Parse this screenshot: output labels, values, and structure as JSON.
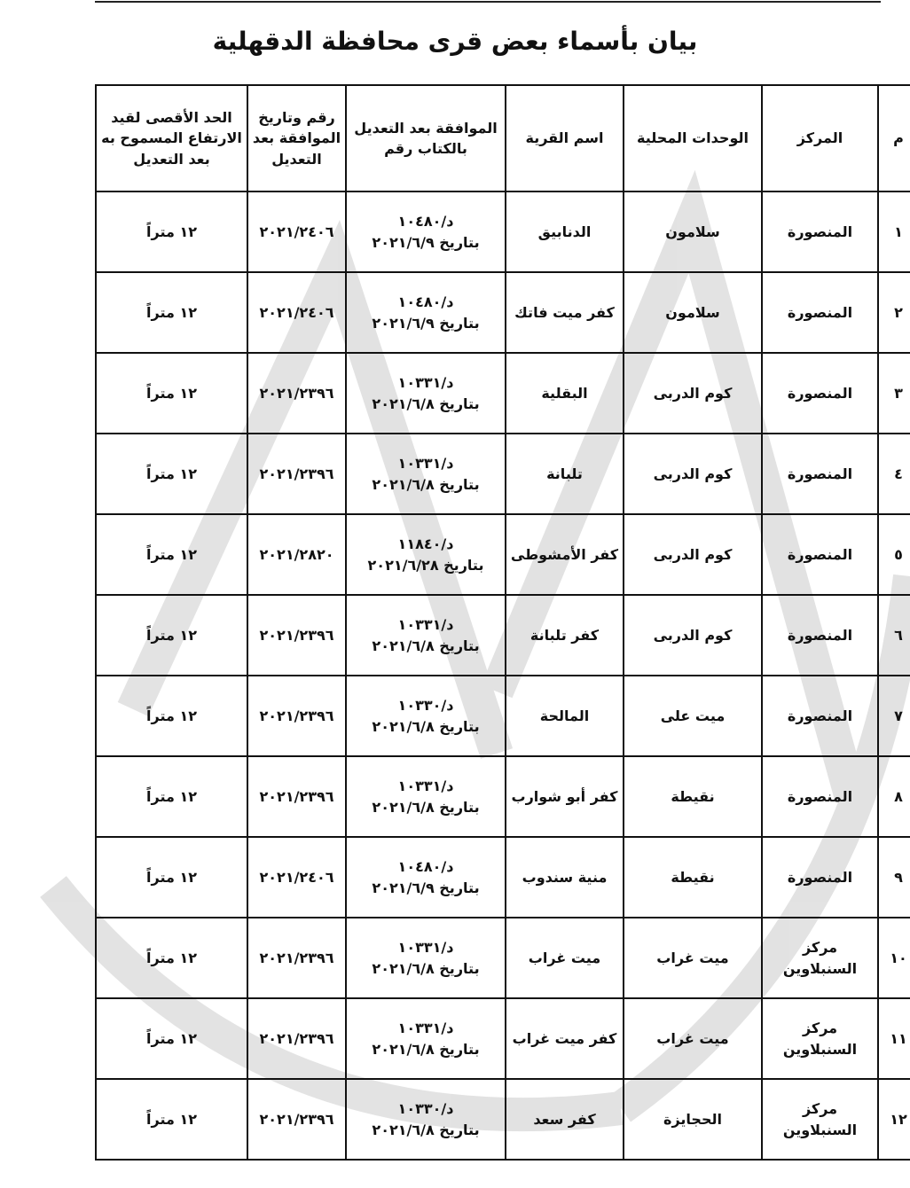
{
  "title": "بيان بأسماء بعض قرى محافظة الدقهلية",
  "headers": [
    "م",
    "المركز",
    "الوحدات المحلية",
    "اسم القرية",
    "الموافقة بعد التعديل بالكتاب رقم",
    "رقم وتاريخ الموافقة بعد التعديل",
    "الحد الأقصى لقيد الارتفاع المسموح به بعد التعديل"
  ],
  "rows": [
    {
      "n": "١",
      "markaz": "المنصورة",
      "unit": "سلامون",
      "village": "الدنابيق",
      "letter": "د/١٠٤٨٠",
      "date": "بتاريخ ٢٠٢١/٦/٩",
      "approval": "٢٠٢١/٢٤٠٦",
      "limit": "١٢ متراً"
    },
    {
      "n": "٢",
      "markaz": "المنصورة",
      "unit": "سلامون",
      "village": "كفر ميت فاتك",
      "letter": "د/١٠٤٨٠",
      "date": "بتاريخ ٢٠٢١/٦/٩",
      "approval": "٢٠٢١/٢٤٠٦",
      "limit": "١٢ متراً"
    },
    {
      "n": "٣",
      "markaz": "المنصورة",
      "unit": "كوم الدربى",
      "village": "البقلية",
      "letter": "د/١٠٣٣١",
      "date": "بتاريخ ٢٠٢١/٦/٨",
      "approval": "٢٠٢١/٢٣٩٦",
      "limit": "١٢ متراً"
    },
    {
      "n": "٤",
      "markaz": "المنصورة",
      "unit": "كوم الدربى",
      "village": "تلبانة",
      "letter": "د/١٠٣٣١",
      "date": "بتاريخ ٢٠٢١/٦/٨",
      "approval": "٢٠٢١/٢٣٩٦",
      "limit": "١٢ متراً"
    },
    {
      "n": "٥",
      "markaz": "المنصورة",
      "unit": "كوم الدربى",
      "village": "كفر الأمشوطى",
      "letter": "د/١١٨٤٠",
      "date": "بتاريخ ٢٠٢١/٦/٢٨",
      "approval": "٢٠٢١/٢٨٢٠",
      "limit": "١٢ متراً"
    },
    {
      "n": "٦",
      "markaz": "المنصورة",
      "unit": "كوم الدربى",
      "village": "كفر تلبانة",
      "letter": "د/١٠٣٣١",
      "date": "بتاريخ ٢٠٢١/٦/٨",
      "approval": "٢٠٢١/٢٣٩٦",
      "limit": "١٢ متراً"
    },
    {
      "n": "٧",
      "markaz": "المنصورة",
      "unit": "ميت على",
      "village": "المالحة",
      "letter": "د/١٠٣٣٠",
      "date": "بتاريخ ٢٠٢١/٦/٨",
      "approval": "٢٠٢١/٢٣٩٦",
      "limit": "١٢ متراً"
    },
    {
      "n": "٨",
      "markaz": "المنصورة",
      "unit": "نقيطة",
      "village": "كفر أبو شوارب",
      "letter": "د/١٠٣٣١",
      "date": "بتاريخ ٢٠٢١/٦/٨",
      "approval": "٢٠٢١/٢٣٩٦",
      "limit": "١٢ متراً"
    },
    {
      "n": "٩",
      "markaz": "المنصورة",
      "unit": "نقيطة",
      "village": "منية سندوب",
      "letter": "د/١٠٤٨٠",
      "date": "بتاريخ ٢٠٢١/٦/٩",
      "approval": "٢٠٢١/٢٤٠٦",
      "limit": "١٢ متراً"
    },
    {
      "n": "١٠",
      "markaz": "مركز السنبلاوين",
      "unit": "ميت غراب",
      "village": "ميت غراب",
      "letter": "د/١٠٣٣١",
      "date": "بتاريخ ٢٠٢١/٦/٨",
      "approval": "٢٠٢١/٢٣٩٦",
      "limit": "١٢ متراً"
    },
    {
      "n": "١١",
      "markaz": "مركز السنبلاوين",
      "unit": "ميت غراب",
      "village": "كفر ميت غراب",
      "letter": "د/١٠٣٣١",
      "date": "بتاريخ ٢٠٢١/٦/٨",
      "approval": "٢٠٢١/٢٣٩٦",
      "limit": "١٢ متراً"
    },
    {
      "n": "١٢",
      "markaz": "مركز السنبلاوين",
      "unit": "الحجايزة",
      "village": "كفر سعد",
      "letter": "د/١٠٣٣٠",
      "date": "بتاريخ ٢٠٢١/٦/٨",
      "approval": "٢٠٢١/٢٣٩٦",
      "limit": "١٢ متراً"
    }
  ]
}
